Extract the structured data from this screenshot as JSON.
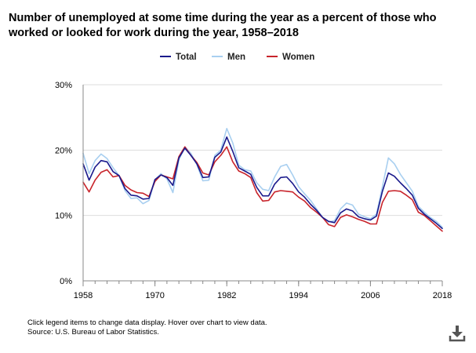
{
  "chart_data": {
    "type": "line",
    "title": "Number of unemployed at some time during the year as a percent of those who worked or looked for work during the year, 1958–2018",
    "xlabel": "",
    "ylabel": "",
    "ylim": [
      0,
      30
    ],
    "xlim": [
      1958,
      2018
    ],
    "y_ticks": [
      "0%",
      "10%",
      "20%",
      "30%"
    ],
    "y_tick_values": [
      0,
      10,
      20,
      30
    ],
    "x_ticks": [
      "1958",
      "1970",
      "1982",
      "1994",
      "2006",
      "2018"
    ],
    "x_tick_values": [
      1958,
      1970,
      1982,
      1994,
      2006,
      2018
    ],
    "grid": "horizontal",
    "legend_position": "top",
    "x": [
      1958,
      1959,
      1960,
      1961,
      1962,
      1963,
      1964,
      1965,
      1966,
      1967,
      1968,
      1969,
      1970,
      1971,
      1972,
      1973,
      1974,
      1975,
      1976,
      1977,
      1978,
      1979,
      1980,
      1981,
      1982,
      1983,
      1984,
      1985,
      1986,
      1987,
      1988,
      1989,
      1990,
      1991,
      1992,
      1993,
      1994,
      1995,
      1996,
      1997,
      1998,
      1999,
      2000,
      2001,
      2002,
      2003,
      2004,
      2005,
      2006,
      2007,
      2008,
      2009,
      2010,
      2011,
      2012,
      2013,
      2014,
      2015,
      2016,
      2017,
      2018
    ],
    "series": [
      {
        "name": "Total",
        "color": "#1a1a8c",
        "values": [
          17.9,
          15.4,
          17.4,
          18.4,
          18.2,
          16.7,
          16.1,
          14.1,
          13.1,
          13.0,
          12.5,
          12.6,
          15.5,
          16.2,
          15.8,
          14.6,
          18.8,
          20.3,
          19.2,
          17.9,
          15.8,
          15.9,
          18.9,
          19.7,
          22.0,
          19.8,
          17.3,
          16.8,
          16.3,
          14.3,
          13.0,
          13.0,
          14.8,
          15.8,
          15.9,
          14.9,
          13.6,
          12.8,
          11.7,
          10.8,
          9.7,
          9.1,
          8.9,
          10.4,
          11.0,
          10.7,
          9.8,
          9.5,
          9.3,
          9.9,
          13.7,
          16.5,
          16.0,
          15.0,
          14.1,
          13.1,
          11.1,
          10.2,
          9.5,
          8.8,
          8.0
        ]
      },
      {
        "name": "Men",
        "color": "#a8cff0",
        "values": [
          19.5,
          16.4,
          18.4,
          19.4,
          18.7,
          17.3,
          16.1,
          13.8,
          12.6,
          12.7,
          11.8,
          12.3,
          15.4,
          16.4,
          15.6,
          13.5,
          18.5,
          20.5,
          19.5,
          17.8,
          15.3,
          15.4,
          19.2,
          20.0,
          23.3,
          21.1,
          17.7,
          17.0,
          16.8,
          15.0,
          14.0,
          13.8,
          15.9,
          17.5,
          17.8,
          16.2,
          14.4,
          13.3,
          12.3,
          11.0,
          9.7,
          9.0,
          9.2,
          11.0,
          11.9,
          11.6,
          10.2,
          9.8,
          9.5,
          10.2,
          14.4,
          18.8,
          17.9,
          16.3,
          15.0,
          13.7,
          11.4,
          10.5,
          9.7,
          9.1,
          8.2
        ]
      },
      {
        "name": "Women",
        "color": "#c8242b",
        "values": [
          15.1,
          13.6,
          15.4,
          16.6,
          17.0,
          15.9,
          16.1,
          14.6,
          13.9,
          13.5,
          13.4,
          12.9,
          15.2,
          16.2,
          15.9,
          15.6,
          19.0,
          20.5,
          19.2,
          18.1,
          16.5,
          16.2,
          18.2,
          19.2,
          20.5,
          18.2,
          16.8,
          16.4,
          15.8,
          13.5,
          12.2,
          12.3,
          13.6,
          13.8,
          13.7,
          13.6,
          12.8,
          12.2,
          11.2,
          10.5,
          9.7,
          8.6,
          8.3,
          9.7,
          10.1,
          9.8,
          9.4,
          9.1,
          8.7,
          8.7,
          12.0,
          13.7,
          13.8,
          13.7,
          13.1,
          12.4,
          10.5,
          10.0,
          9.2,
          8.4,
          7.6
        ]
      }
    ]
  },
  "footnote": {
    "line1": "Click legend items to change data display. Hover over chart to view data.",
    "line2": "Source: U.S. Bureau of Labor Statistics."
  },
  "controls": {
    "download_icon": "download-icon"
  }
}
